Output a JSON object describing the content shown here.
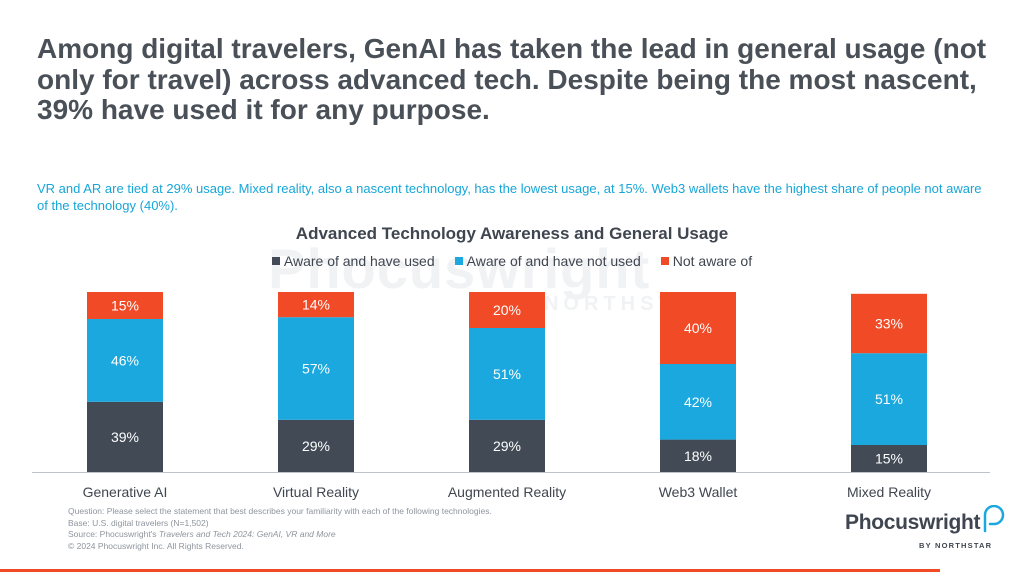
{
  "headline": "Among digital travelers, GenAI has taken the lead in general usage (not only for travel) across advanced tech. Despite being the most nascent, 39% have used it for any purpose.",
  "subheadline": "VR and AR are tied at 29% usage. Mixed reality, also a nascent technology, has the lowest usage, at 15%. Web3 wallets have the highest share of people not aware of the technology (40%).",
  "watermark": {
    "brand": "Phocuswright",
    "by": "BY NORTHSTAR"
  },
  "colors": {
    "used": "#414a55",
    "not_used": "#1ba8de",
    "not_aware": "#f04a26",
    "accent_rule": "#f04a26"
  },
  "chart_data": {
    "type": "bar",
    "stacked": true,
    "percent_stacked": true,
    "title": "Advanced Technology Awareness and General Usage",
    "legend_position": "top",
    "grid": false,
    "ylim": [
      0,
      100
    ],
    "categories": [
      "Generative AI",
      "Virtual Reality",
      "Augmented Reality",
      "Web3 Wallet",
      "Mixed Reality"
    ],
    "series": [
      {
        "name": "Aware of and have used",
        "values": [
          39,
          29,
          29,
          18,
          15
        ],
        "color": "#414a55"
      },
      {
        "name": "Aware of and have not used",
        "values": [
          46,
          57,
          51,
          42,
          51
        ],
        "color": "#1ba8de"
      },
      {
        "name": "Not aware of",
        "values": [
          15,
          14,
          20,
          40,
          33
        ],
        "color": "#f04a26"
      }
    ]
  },
  "footnotes": {
    "question": "Question: Please select the statement that best describes your familiarity with each of the following technologies.",
    "base": "Base: U.S. digital travelers (N=1,502)",
    "source_prefix": "Source: Phocuswright's ",
    "source_title": "Travelers and Tech 2024: GenAI, VR and More",
    "copyright": "© 2024 Phocuswright Inc. All Rights Reserved."
  },
  "logo": {
    "name": "Phocuswright",
    "by": "BY NORTHSTAR"
  }
}
